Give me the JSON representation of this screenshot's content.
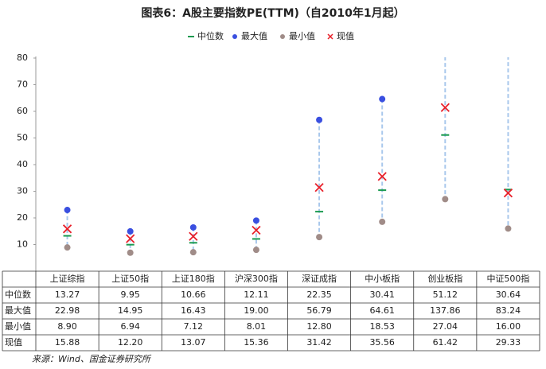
{
  "chart_data": {
    "type": "range",
    "title": "图表6：A股主要指数PE(TTM)（自2010年1月起）",
    "categories": [
      "上证综指",
      "上证50指",
      "上证180指",
      "沪深300指",
      "深证成指",
      "中小板指",
      "创业板指",
      "中证500指"
    ],
    "series": [
      {
        "name": "中位数",
        "color": "#1a9a50",
        "marker": "dash",
        "values": [
          13.27,
          9.95,
          10.66,
          12.11,
          22.35,
          30.41,
          51.12,
          30.64
        ],
        "value_labels": [
          "13.27",
          "9.95",
          "10.66",
          "12.11",
          "22.35",
          "30.41",
          "51.12",
          "30.64"
        ]
      },
      {
        "name": "最大值",
        "color": "#3a4fe0",
        "marker": "dot",
        "values": [
          22.98,
          14.95,
          16.43,
          19.0,
          56.79,
          64.61,
          137.86,
          83.24
        ],
        "value_labels": [
          "22.98",
          "14.95",
          "16.43",
          "19.00",
          "56.79",
          "64.61",
          "137.86",
          "83.24"
        ]
      },
      {
        "name": "最小值",
        "color": "#a08c88",
        "marker": "dot",
        "values": [
          8.9,
          6.94,
          7.12,
          8.01,
          12.8,
          18.53,
          27.04,
          16.0
        ],
        "value_labels": [
          "8.90",
          "6.94",
          "7.12",
          "8.01",
          "12.80",
          "18.53",
          "27.04",
          "16.00"
        ]
      },
      {
        "name": "现值",
        "color": "#e8202a",
        "marker": "cross",
        "values": [
          15.88,
          12.2,
          13.07,
          15.36,
          31.42,
          35.56,
          61.42,
          29.33
        ],
        "value_labels": [
          "15.88",
          "12.20",
          "13.07",
          "15.36",
          "31.42",
          "35.56",
          "61.42",
          "29.33"
        ]
      }
    ],
    "range_color": "#a9c8ec",
    "ylim": [
      0,
      80
    ],
    "yticks": [
      10,
      20,
      30,
      40,
      50,
      60,
      70,
      80
    ],
    "source": "来源：Wind、国金证券研究所"
  }
}
